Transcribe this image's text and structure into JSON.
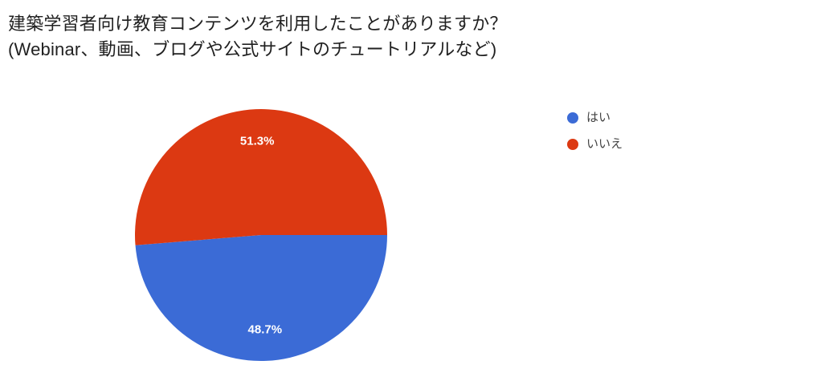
{
  "title": {
    "line1": "建築学習者向け教育コンテンツを利用したことがありますか？",
    "line2": "(Webinar、動画、ブログや公式サイトのチュートリアルなど)"
  },
  "chart_data": {
    "type": "pie",
    "title": "建築学習者向け教育コンテンツを利用したことがありますか？ (Webinar、動画、ブログや公式サイトのチュートリアルなど)",
    "categories": [
      "はい",
      "いいえ"
    ],
    "values": [
      48.7,
      51.3
    ],
    "slice_labels": [
      "48.7%",
      "51.3%"
    ],
    "colors": [
      "#3b6bd6",
      "#dc3912"
    ],
    "label_color": "#ffffff",
    "legend_position": "right",
    "start_angle": 0,
    "direction": "clockwise"
  }
}
